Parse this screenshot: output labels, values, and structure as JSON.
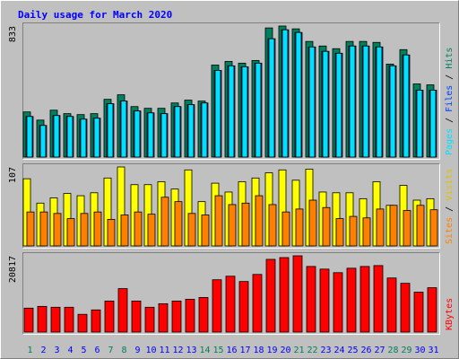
{
  "chart_data": [
    {
      "type": "bar",
      "title": "Daily usage for March 2020",
      "legend_separator": " / ",
      "ylim": [
        0,
        833
      ],
      "yticks": [
        833
      ],
      "series": [
        {
          "name": "Pages",
          "color": "#00e0ff",
          "values": [
            258,
            201,
            264,
            258,
            241,
            247,
            339,
            356,
            293,
            281,
            276,
            321,
            333,
            344,
            551,
            580,
            574,
            597,
            752,
            809,
            792,
            700,
            672,
            660,
            706,
            706,
            700,
            580,
            649,
            425,
            425
          ]
        },
        {
          "name": "Files",
          "color": "#0040ff",
          "values": [
            258,
            201,
            264,
            258,
            241,
            247,
            339,
            356,
            293,
            281,
            276,
            321,
            333,
            344,
            551,
            580,
            574,
            597,
            752,
            809,
            792,
            700,
            672,
            660,
            706,
            706,
            700,
            580,
            649,
            425,
            425
          ]
        },
        {
          "name": "Hits",
          "color": "#00805c",
          "values": [
            287,
            235,
            298,
            276,
            270,
            276,
            367,
            396,
            321,
            310,
            310,
            344,
            362,
            356,
            585,
            608,
            597,
            614,
            821,
            833,
            815,
            735,
            706,
            689,
            735,
            735,
            729,
            591,
            683,
            465,
            459
          ]
        }
      ]
    },
    {
      "type": "bar",
      "legend_separator": " / ",
      "ylim": [
        0,
        107
      ],
      "yticks": [
        107
      ],
      "series": [
        {
          "name": "Sites",
          "color": "#ff8000",
          "values": [
            46,
            46,
            44,
            37,
            44,
            46,
            36,
            42,
            46,
            43,
            66,
            60,
            44,
            42,
            68,
            56,
            58,
            68,
            56,
            46,
            50,
            62,
            52,
            37,
            40,
            38,
            50,
            55,
            48,
            55,
            49
          ]
        },
        {
          "name": "Visits",
          "color": "#ffff00",
          "values": [
            91,
            58,
            65,
            71,
            68,
            72,
            92,
            107,
            83,
            83,
            87,
            77,
            103,
            60,
            85,
            73,
            87,
            92,
            99,
            103,
            89,
            104,
            73,
            72,
            72,
            64,
            87,
            55,
            82,
            62,
            64
          ]
        }
      ]
    },
    {
      "type": "bar",
      "ylim": [
        0,
        20817
      ],
      "yticks": [
        20817
      ],
      "categories": [
        "1",
        "2",
        "3",
        "4",
        "5",
        "6",
        "7",
        "8",
        "9",
        "10",
        "11",
        "12",
        "13",
        "14",
        "15",
        "16",
        "17",
        "18",
        "19",
        "20",
        "21",
        "22",
        "23",
        "24",
        "25",
        "26",
        "27",
        "28",
        "29",
        "30",
        "31"
      ],
      "category_colors": [
        "#00805c",
        "#0000ff",
        "#0000ff",
        "#0000ff",
        "#0000ff",
        "#0000ff",
        "#00805c",
        "#00805c",
        "#0000ff",
        "#0000ff",
        "#0000ff",
        "#0000ff",
        "#0000ff",
        "#00805c",
        "#00805c",
        "#0000ff",
        "#0000ff",
        "#0000ff",
        "#0000ff",
        "#0000ff",
        "#00805c",
        "#00805c",
        "#0000ff",
        "#0000ff",
        "#0000ff",
        "#0000ff",
        "#0000ff",
        "#00805c",
        "#00805c",
        "#0000ff",
        "#0000ff"
      ],
      "series": [
        {
          "name": "KBytes",
          "color": "#ff0000",
          "values": [
            6534,
            7018,
            6776,
            6776,
            4840,
            6050,
            8470,
            11858,
            8470,
            6776,
            7744,
            8470,
            8954,
            9438,
            14278,
            15246,
            13794,
            15730,
            19844,
            20328,
            20817,
            17908,
            17182,
            16214,
            17424,
            17908,
            18150,
            14762,
            13310,
            10890,
            12100
          ]
        }
      ]
    }
  ]
}
